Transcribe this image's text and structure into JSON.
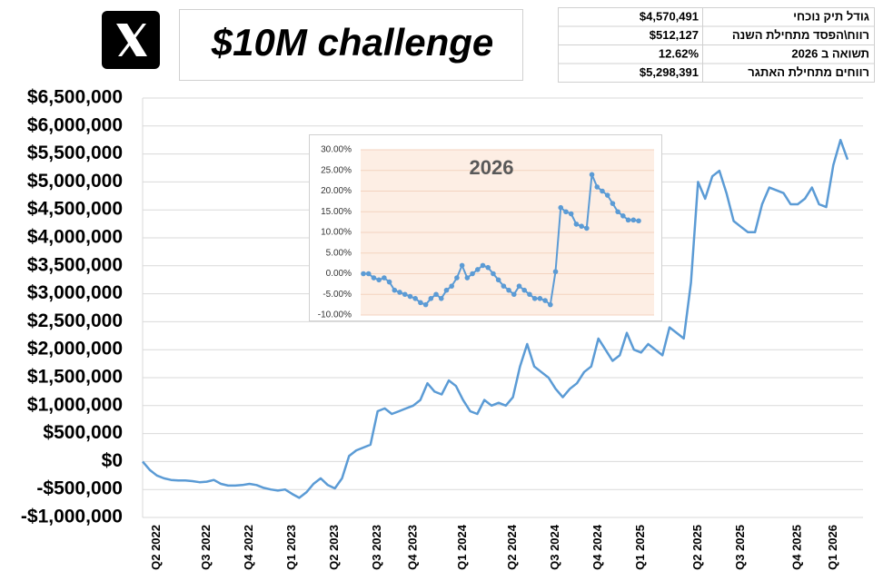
{
  "header": {
    "title": "$10M challenge"
  },
  "summary_table": {
    "rows": [
      [
        "$4,570,491",
        "גודל תיק נוכחי"
      ],
      [
        "$512,127",
        "רווח\\הפסד מתחילת השנה"
      ],
      [
        "12.62%",
        "תשואה ב 2026"
      ],
      [
        "$5,298,391",
        "רווחים מתחילת האתגר"
      ]
    ]
  },
  "chart_data": [
    {
      "type": "line",
      "color": "#5b9bd5",
      "grid": true,
      "categories": [
        null,
        null,
        "Q2 2022",
        null,
        null,
        null,
        null,
        null,
        null,
        "Q3 2022",
        null,
        null,
        null,
        null,
        null,
        "Q4 2022",
        null,
        null,
        null,
        null,
        null,
        "Q1 2023",
        null,
        null,
        null,
        null,
        null,
        "Q2 2023",
        null,
        null,
        null,
        null,
        null,
        "Q3 2023",
        null,
        null,
        null,
        null,
        "Q4 2023",
        null,
        null,
        null,
        null,
        null,
        null,
        "Q1 2024",
        null,
        null,
        null,
        null,
        null,
        null,
        "Q2 2024",
        null,
        null,
        null,
        null,
        null,
        "Q3 2024",
        null,
        null,
        null,
        null,
        null,
        "Q4 2024",
        null,
        null,
        null,
        null,
        null,
        "Q1 2025",
        null,
        null,
        null,
        null,
        null,
        null,
        null,
        "Q2 2025",
        null,
        null,
        null,
        null,
        null,
        "Q3 2025",
        null,
        null,
        null,
        null,
        null,
        null,
        null,
        "Q4 2025",
        null,
        null,
        null,
        null,
        "Q1 2026",
        null,
        null
      ],
      "values": [
        0,
        -150000,
        -250000,
        -300000,
        -330000,
        -340000,
        -340000,
        -350000,
        -370000,
        -360000,
        -330000,
        -400000,
        -430000,
        -430000,
        -420000,
        -400000,
        -420000,
        -470000,
        -500000,
        -520000,
        -500000,
        -580000,
        -650000,
        -550000,
        -400000,
        -300000,
        -420000,
        -480000,
        -300000,
        100000,
        200000,
        250000,
        300000,
        900000,
        950000,
        850000,
        900000,
        950000,
        1000000,
        1100000,
        1400000,
        1250000,
        1200000,
        1450000,
        1350000,
        1100000,
        900000,
        850000,
        1100000,
        1000000,
        1050000,
        1000000,
        1150000,
        1700000,
        2100000,
        1700000,
        1600000,
        1500000,
        1300000,
        1150000,
        1300000,
        1400000,
        1600000,
        1700000,
        2200000,
        2000000,
        1800000,
        1900000,
        2300000,
        2000000,
        1950000,
        2100000,
        2000000,
        1900000,
        2400000,
        2300000,
        2200000,
        3200000,
        5000000,
        4700000,
        5100000,
        5200000,
        4800000,
        4300000,
        4200000,
        4100000,
        4100000,
        4600000,
        4900000,
        4850000,
        4800000,
        4600000,
        4600000,
        4700000,
        4900000,
        4600000,
        4550000,
        5300000,
        5750000,
        5400000
      ],
      "ylim": [
        -1000000,
        6500000
      ],
      "yticks": [
        {
          "value": -1000000,
          "label": "-$1,000,000"
        },
        {
          "value": -500000,
          "label": "-$500,000"
        },
        {
          "value": 0,
          "label": "$0"
        },
        {
          "value": 500000,
          "label": "$500,000"
        },
        {
          "value": 1000000,
          "label": "$1,000,000"
        },
        {
          "value": 1500000,
          "label": "$1,500,000"
        },
        {
          "value": 2000000,
          "label": "$2,000,000"
        },
        {
          "value": 2500000,
          "label": "$2,500,000"
        },
        {
          "value": 3000000,
          "label": "$3,000,000"
        },
        {
          "value": 3500000,
          "label": "$3,500,000"
        },
        {
          "value": 4000000,
          "label": "$4,000,000"
        },
        {
          "value": 4500000,
          "label": "$4,500,000"
        },
        {
          "value": 5000000,
          "label": "$5,000,000"
        },
        {
          "value": 5500000,
          "label": "$5,500,000"
        },
        {
          "value": 6000000,
          "label": "$6,000,000"
        },
        {
          "value": 6500000,
          "label": "$6,500,000"
        }
      ]
    },
    {
      "type": "line",
      "title": "2026",
      "color": "#5b9bd5",
      "grid": true,
      "values": [
        0,
        0,
        -1,
        -1.5,
        -1,
        -2,
        -4,
        -4.5,
        -5,
        -5.5,
        -6,
        -7,
        -7.5,
        -6,
        -5,
        -6,
        -4,
        -3,
        -1,
        2,
        -1,
        0,
        1,
        2,
        1.5,
        0,
        -1.5,
        -3,
        -4,
        -5,
        -3,
        -4,
        -5,
        -6,
        -6,
        -6.5,
        -7.5,
        0.5,
        16,
        15,
        14.5,
        12,
        11.5,
        11,
        24,
        21,
        20,
        19,
        17,
        15,
        14,
        13,
        13,
        12.8
      ],
      "ylim": [
        -10,
        30
      ],
      "yticks": [
        {
          "value": -10,
          "label": "-10.00%"
        },
        {
          "value": -5,
          "label": "-5.00%"
        },
        {
          "value": 0,
          "label": "0.00%"
        },
        {
          "value": 5,
          "label": "5.00%"
        },
        {
          "value": 10,
          "label": "10.00%"
        },
        {
          "value": 15,
          "label": "15.00%"
        },
        {
          "value": 20,
          "label": "20.00%"
        },
        {
          "value": 25,
          "label": "25.00%"
        },
        {
          "value": 30,
          "label": "30.00%"
        }
      ]
    }
  ]
}
